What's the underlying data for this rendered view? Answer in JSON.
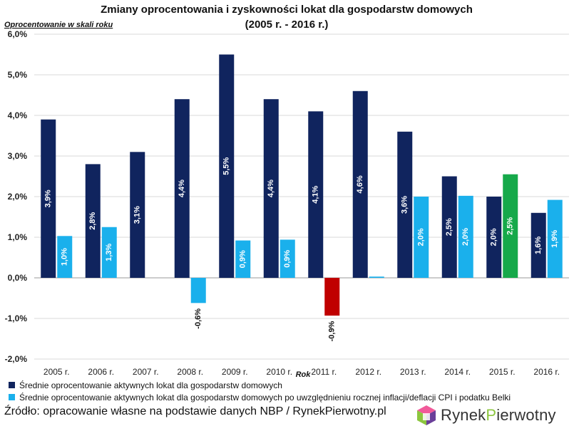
{
  "chart_data": {
    "type": "bar",
    "title": "Zmiany oprocentowania i zyskowności lokat dla gospodarstw domowych",
    "subtitle": "(2005 r. - 2016 r.)",
    "ylabel": "Oprocentowanie w skali roku",
    "xlabel": "Rok",
    "ylim": [
      -2.0,
      6.0
    ],
    "yticks": [
      "-2,0%",
      "-1,0%",
      "0,0%",
      "1,0%",
      "2,0%",
      "3,0%",
      "4,0%",
      "5,0%",
      "6,0%"
    ],
    "ytick_values": [
      -2,
      -1,
      0,
      1,
      2,
      3,
      4,
      5,
      6
    ],
    "categories": [
      "2005 r.",
      "2006 r.",
      "2007 r.",
      "2008 r.",
      "2009 r.",
      "2010 r.",
      "2011 r.",
      "2012 r.",
      "2013 r.",
      "2014 r.",
      "2015 r.",
      "2016 r."
    ],
    "series": [
      {
        "name": "Średnie oprocentowanie aktywnych lokat dla gospodarstw domowych",
        "color": "#10245e",
        "values": [
          3.9,
          2.8,
          3.1,
          4.4,
          5.5,
          4.4,
          4.1,
          4.6,
          3.6,
          2.5,
          2.0,
          1.6
        ],
        "labels": [
          "3,9%",
          "2,8%",
          "3,1%",
          "4,4%",
          "5,5%",
          "4,4%",
          "4,1%",
          "4,6%",
          "3,6%",
          "2,5%",
          "2,0%",
          "1,6%"
        ]
      },
      {
        "name": "Średnie oprocentowanie aktywnych lokat dla gospodarstw domowych po uwzględnieniu rocznej inflacji/deflacji CPI i podatku Belki",
        "color": "#1ab0ec",
        "values": [
          1.03,
          1.25,
          0.0,
          -0.62,
          0.92,
          0.94,
          -0.93,
          0.03,
          2.0,
          2.02,
          2.55,
          1.92
        ],
        "labels": [
          "1,0%",
          "1,3%",
          "",
          "-0,6%",
          "0,9%",
          "0,9%",
          "-0,9%",
          "",
          "2,0%",
          "2,0%",
          "2,5%",
          "1,9%"
        ],
        "point_colors": [
          "#1ab0ec",
          "#1ab0ec",
          "#1ab0ec",
          "#1ab0ec",
          "#1ab0ec",
          "#1ab0ec",
          "#c00000",
          "#1ab0ec",
          "#1ab0ec",
          "#1ab0ec",
          "#16a94a",
          "#1ab0ec"
        ]
      }
    ],
    "legend_position": "bottom-left"
  },
  "footer": {
    "source": "Źródło: opracowanie własne na podstawie danych NBP / RynekPierwotny.pl",
    "logo_text_1": "Rynek",
    "logo_text_2": "P",
    "logo_text_3": "ierwotny"
  }
}
